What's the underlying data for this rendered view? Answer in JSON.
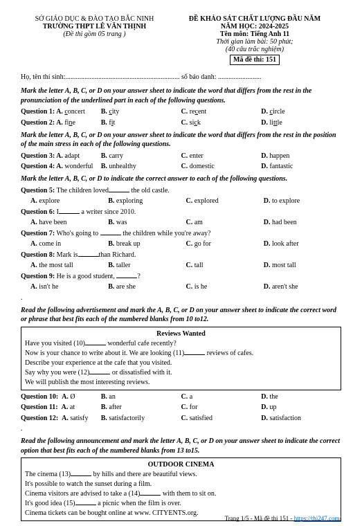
{
  "header": {
    "dept": "SỞ GIÁO DỤC & ĐÀO TẠO BẮC NINH",
    "school": "TRƯỜNG THPT LÊ VĂN THỊNH",
    "pages": "(Đề thi gồm 05  trang )",
    "exam_title": "ĐỀ KHẢO SÁT CHẤT LƯỢNG ĐẦU NĂM",
    "year": "NĂM HỌC: 2024-2025",
    "subject": "Tên môn: Tiếng Anh 11",
    "duration": "Thời gian làm bài: 50 phút;",
    "count": "(40 câu trắc nghiệm)",
    "code": "Mã đề thi: 151"
  },
  "fill": {
    "name_label": "Họ, tên thí sinh:",
    "id_label": " số báo danh: "
  },
  "instr1": "Mark the letter A, B, C, or D on your answer sheet to indicate the word that differs from the rest in the pronunciation of the underlined part in each of the following questions.",
  "q1": {
    "label": "Question 1: A.",
    "a": "oncert",
    "b_label": "B.",
    "b": "ity",
    "c_label": "C.",
    "c_pre": "re",
    "c": "ent",
    "d_label": "D.",
    "d": "ircle"
  },
  "q2": {
    "label": "Question 2: A.",
    "a_pre": "fi",
    "a": "e",
    "b_label": "B.",
    "b_pre": "f",
    "b": "t",
    "c_label": "C.",
    "c_pre": "si",
    "c": "k",
    "d_label": "D.",
    "d_pre": "li",
    "d": "le"
  },
  "instr2": "Mark the letter A, B, C, or D on your answer sheet to indicate the word that differs from the rest in the position of the main stress in each of the following questions.",
  "q3": {
    "label": "Question 3: A.",
    "a": "adapt",
    "b_label": "B.",
    "b": "carry",
    "c_label": "C.",
    "c": "enter",
    "d_label": "D.",
    "d": "happen"
  },
  "q4": {
    "label": "Question 4: A.",
    "a": "wonderful",
    "b_label": "B.",
    "b": "unhealthy",
    "c_label": "C.",
    "c": "domestic",
    "d_label": "D.",
    "d": "fantastic"
  },
  "instr3": "Mark the letter A, B, C, or D to indicate the correct answer to each of the following questions.",
  "q5": {
    "label": "Question 5:",
    "text1": " The children loved",
    "text2": " the old castle.",
    "a_label": "A.",
    "a": "explore",
    "b_label": "B.",
    "b": "exploring",
    "c_label": "C.",
    "c": "explored",
    "d_label": "D.",
    "d": "to explore"
  },
  "q6": {
    "label": "Question 6:",
    "text1": " I",
    "text2": " a writer since 2010.",
    "a_label": "A.",
    "a": "have been",
    "b_label": "B.",
    "b": "was",
    "c_label": "C.",
    "c": "am",
    "d_label": "D.",
    "d": "had been"
  },
  "q7": {
    "label": "Question 7:",
    "text1": " Who's going to ",
    "text2": " the children while you're away?",
    "a_label": "A.",
    "a": "come in",
    "b_label": "B.",
    "b": "break up",
    "c_label": "C.",
    "c": "go for",
    "d_label": "D.",
    "d": "look after"
  },
  "q8": {
    "label": "Question 8:",
    "text1": " Mark is",
    "text2": "than Richard.",
    "a_label": "A.",
    "a": "the most tall",
    "b_label": "B.",
    "b": "taller",
    "c_label": "C.",
    "c": "tall",
    "d_label": "D.",
    "d": "most tall"
  },
  "q9": {
    "label": "Question 9:",
    "text1": " He is a good student, ",
    "text2": "?",
    "a_label": "A.",
    "a": "isn't he",
    "b_label": "B.",
    "b": "are she",
    "c_label": "C.",
    "c": "is he",
    "d_label": "D.",
    "d": "aren't she"
  },
  "instr4": "Read the following advertisement and mark the A, B, C, or D on your answer sheet to indicate the correct word or phrase that best fits each of the numbered blanks from 10 to12.",
  "reviews": {
    "title": "Reviews Wanted",
    "l1a": "Have you visited (10)",
    "l1b": " wonderful cafe recently?",
    "l2a": "Now is your chance to write about it. We are looking (11)",
    "l2b": " reviews of cafes.",
    "l3": "Describe your experience at the cafe that you visited.",
    "l4a": "Say why you were (12)",
    "l4b": " or dissatisfied with it.",
    "l5": "We will publish the most interesting reviews."
  },
  "q10": {
    "label": "Question 10:",
    "a_label": "A.",
    "a": "Ø",
    "b_label": "B.",
    "b": "an",
    "c_label": "C.",
    "c": "a",
    "d_label": "D.",
    "d": "the"
  },
  "q11": {
    "label": "Question 11:",
    "a_label": "A.",
    "a": "at",
    "b_label": "B.",
    "b": "after",
    "c_label": "C.",
    "c": "for",
    "d_label": "D.",
    "d": "up"
  },
  "q12": {
    "label": "Question 12:",
    "a_label": "A.",
    "a": "satisfy",
    "b_label": "B.",
    "b": "satisfactorily",
    "c_label": "C.",
    "c": "satisfied",
    "d_label": "D.",
    "d": "satisfaction"
  },
  "instr5": "Read the following announcement and mark the letter A, B, C, or D on your answer sheet to indicate the correct option that best fits each of the numbered blanks from 13 to15.",
  "cinema": {
    "title": "OUTDOOR CINEMA",
    "l1a": "The cinema (13)",
    "l1b": " by hills and there are beautiful views.",
    "l2": "It's possible to watch the sunset during a film.",
    "l3a": "Cinema visitors are advised to take a (14)",
    "l3b": " with them to sit on.",
    "l4a": "It's good idea (15)",
    "l4b": " a picnic when the film is over.",
    "l5": "Cinema tickets can be bought online at www. CITYENTS.org."
  },
  "footer": {
    "page": "Trang 1/5 - Mã đề thi 151 - ",
    "link": "https://thi247.com/"
  }
}
